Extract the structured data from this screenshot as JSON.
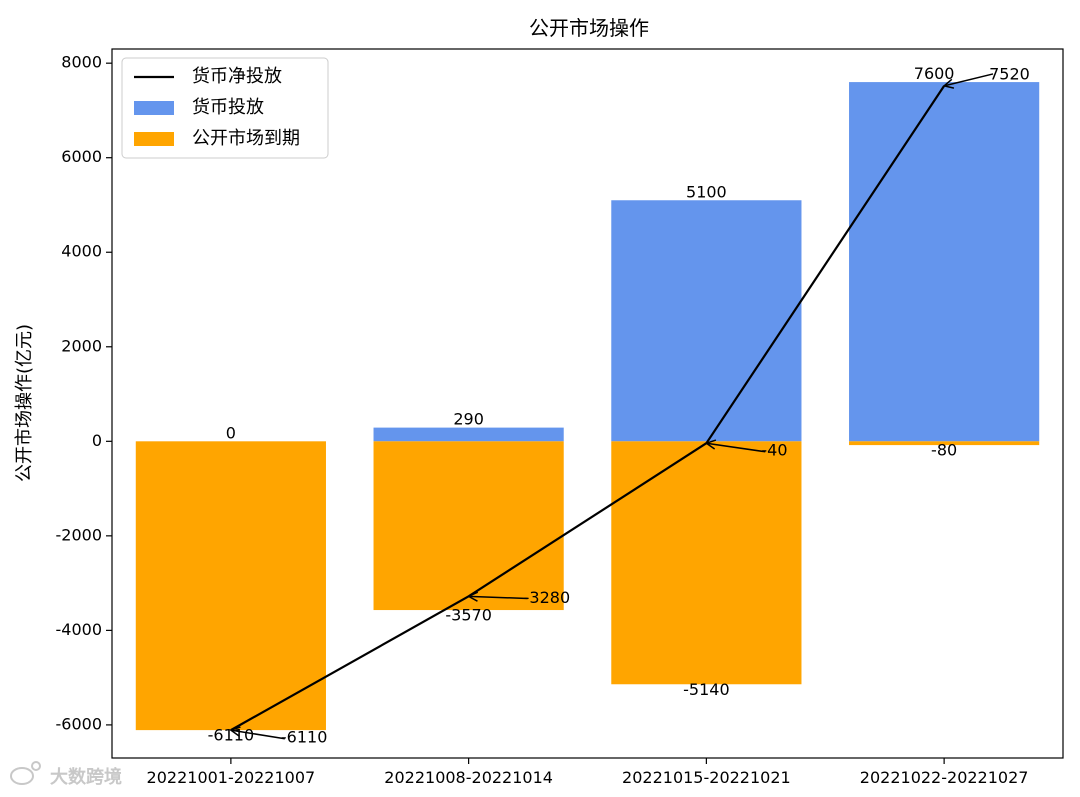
{
  "chart_data": {
    "type": "bar",
    "title": "公开市场操作",
    "xlabel": "",
    "ylabel": "公开市场操作(亿元)",
    "categories": [
      "20221001-20221007",
      "20221008-20221014",
      "20221015-20221021",
      "20221022-20221027"
    ],
    "ylim": [
      -6700,
      8300
    ],
    "yticks": [
      -6000,
      -4000,
      -2000,
      0,
      2000,
      4000,
      6000,
      8000
    ],
    "ytick_labels": [
      "-6000",
      "-4000",
      "-2000",
      "0",
      "2000",
      "4000",
      "6000",
      "8000"
    ],
    "grid": false,
    "legend_placement": "top-left",
    "series": [
      {
        "name": "货币净投放",
        "kind": "line",
        "color": "#000000",
        "values": [
          -6110,
          -3280,
          -40,
          7520
        ]
      },
      {
        "name": "货币投放",
        "kind": "bar",
        "color": "#6495ED",
        "values": [
          0,
          290,
          5100,
          7600
        ]
      },
      {
        "name": "公开市场到期",
        "kind": "bar",
        "color": "#FFA500",
        "values": [
          -6110,
          -3570,
          -5140,
          -80
        ]
      }
    ],
    "bar_labels": {
      "投放": [
        "0",
        "290",
        "5100",
        "7600"
      ],
      "到期": [
        "-6110",
        "-3570",
        "-5140",
        "-80"
      ],
      "净投放": [
        "-6110",
        "-3280",
        "-40",
        "7520"
      ]
    }
  },
  "watermark": "大数跨境"
}
